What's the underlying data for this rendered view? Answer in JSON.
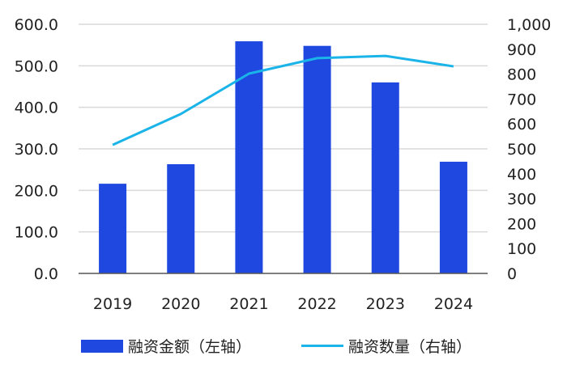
{
  "chart_data": {
    "type": "bar+line",
    "title": "",
    "categories": [
      "2019",
      "2020",
      "2021",
      "2022",
      "2023",
      "2024"
    ],
    "series": [
      {
        "name": "融资金额（左轴）",
        "type": "bar",
        "axis": "left",
        "color": "#1f48e0",
        "values": [
          216,
          263,
          559,
          548,
          460,
          269
        ]
      },
      {
        "name": "融资数量（右轴）",
        "type": "line",
        "axis": "right",
        "color": "#1ab4e8",
        "values": [
          516,
          640,
          802,
          864,
          873,
          831
        ]
      }
    ],
    "left_axis": {
      "ylim": [
        0,
        600
      ],
      "ticks": [
        "0.0",
        "100.0",
        "200.0",
        "300.0",
        "400.0",
        "500.0",
        "600.0"
      ]
    },
    "right_axis": {
      "ylim": [
        0,
        1000
      ],
      "ticks": [
        "0",
        "100",
        "200",
        "300",
        "400",
        "500",
        "600",
        "700",
        "800",
        "900",
        "1,000"
      ]
    },
    "xlabel": "",
    "ylabel": "",
    "grid": true,
    "legend_position": "bottom"
  },
  "legend": {
    "bar_label": "融资金额（左轴）",
    "line_label": "融资数量（右轴）"
  }
}
